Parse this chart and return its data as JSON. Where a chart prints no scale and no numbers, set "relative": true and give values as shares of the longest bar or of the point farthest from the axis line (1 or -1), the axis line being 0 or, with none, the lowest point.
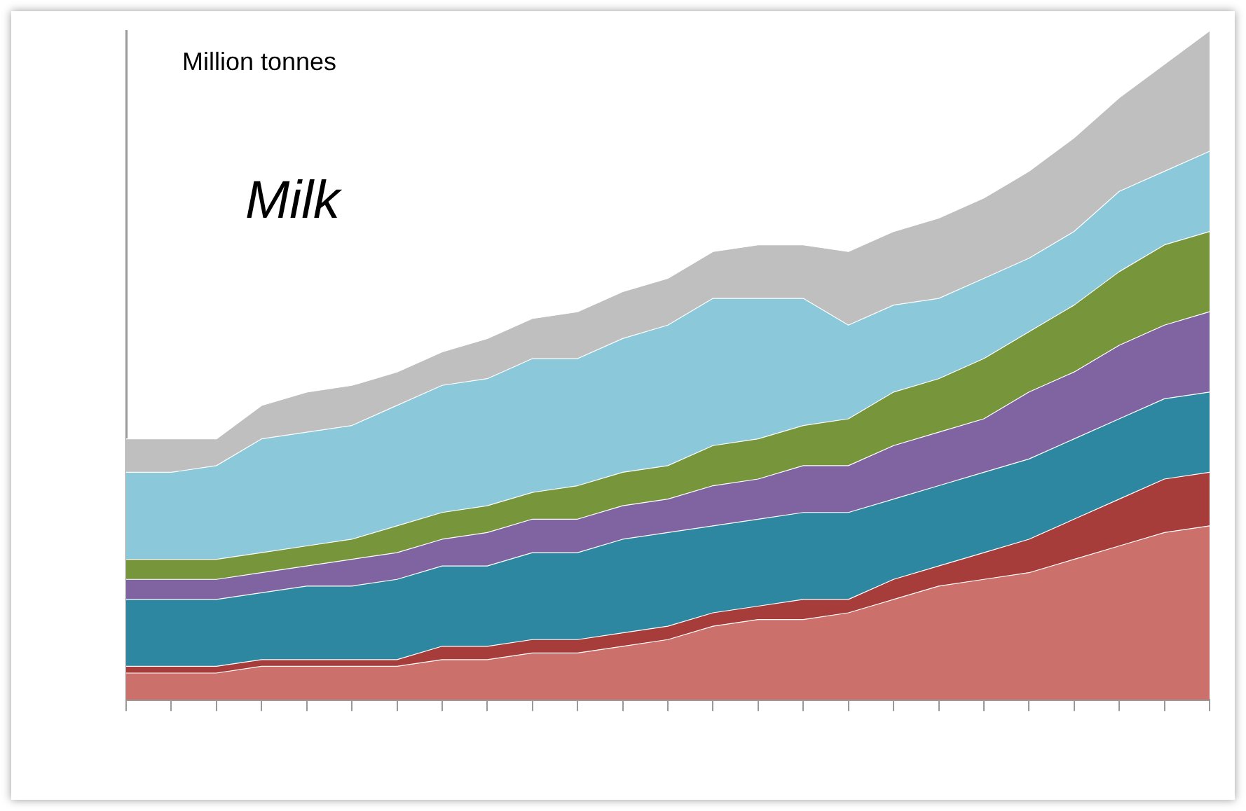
{
  "chart_data": {
    "type": "area",
    "title": "Milk",
    "annotations": [
      "Million tonnes"
    ],
    "relative": true,
    "stacked": true,
    "grid": false,
    "categories": [
      null,
      null,
      null,
      null,
      null,
      null,
      null,
      null,
      null,
      null,
      null,
      null,
      null,
      null,
      null,
      null,
      null,
      null,
      null,
      null,
      null,
      null,
      null,
      null,
      null
    ],
    "series": [
      {
        "color": "#cc706c",
        "values": [
          0.04,
          0.04,
          0.04,
          0.05,
          0.05,
          0.05,
          0.05,
          0.06,
          0.06,
          0.07,
          0.07,
          0.08,
          0.09,
          0.11,
          0.12,
          0.12,
          0.13,
          0.15,
          0.17,
          0.18,
          0.19,
          0.21,
          0.23,
          0.25,
          0.26
        ]
      },
      {
        "color": "#a63d3a",
        "values": [
          0.01,
          0.01,
          0.01,
          0.01,
          0.01,
          0.01,
          0.01,
          0.02,
          0.02,
          0.02,
          0.02,
          0.02,
          0.02,
          0.02,
          0.02,
          0.03,
          0.02,
          0.03,
          0.03,
          0.04,
          0.05,
          0.06,
          0.07,
          0.08,
          0.08
        ]
      },
      {
        "color": "#2e87a0",
        "values": [
          0.1,
          0.1,
          0.1,
          0.1,
          0.11,
          0.11,
          0.12,
          0.12,
          0.12,
          0.13,
          0.13,
          0.14,
          0.14,
          0.13,
          0.13,
          0.13,
          0.13,
          0.12,
          0.12,
          0.12,
          0.12,
          0.12,
          0.12,
          0.12,
          0.12
        ]
      },
      {
        "color": "#8064a2",
        "values": [
          0.03,
          0.03,
          0.03,
          0.03,
          0.03,
          0.04,
          0.04,
          0.04,
          0.05,
          0.05,
          0.05,
          0.05,
          0.05,
          0.06,
          0.06,
          0.07,
          0.07,
          0.08,
          0.08,
          0.08,
          0.1,
          0.1,
          0.11,
          0.11,
          0.12
        ]
      },
      {
        "color": "#77963c",
        "values": [
          0.03,
          0.03,
          0.03,
          0.03,
          0.03,
          0.03,
          0.04,
          0.04,
          0.04,
          0.04,
          0.05,
          0.05,
          0.05,
          0.06,
          0.06,
          0.06,
          0.07,
          0.08,
          0.08,
          0.09,
          0.09,
          0.1,
          0.11,
          0.12,
          0.12
        ]
      },
      {
        "color": "#8ac8da",
        "values": [
          0.13,
          0.13,
          0.14,
          0.17,
          0.17,
          0.17,
          0.18,
          0.19,
          0.19,
          0.2,
          0.19,
          0.2,
          0.21,
          0.22,
          0.21,
          0.19,
          0.14,
          0.13,
          0.12,
          0.12,
          0.11,
          0.11,
          0.12,
          0.11,
          0.12
        ]
      },
      {
        "color": "#bfbfbf",
        "values": [
          0.05,
          0.05,
          0.04,
          0.05,
          0.06,
          0.06,
          0.05,
          0.05,
          0.06,
          0.06,
          0.07,
          0.07,
          0.07,
          0.07,
          0.08,
          0.08,
          0.11,
          0.11,
          0.12,
          0.12,
          0.13,
          0.14,
          0.14,
          0.16,
          0.18
        ]
      }
    ]
  }
}
